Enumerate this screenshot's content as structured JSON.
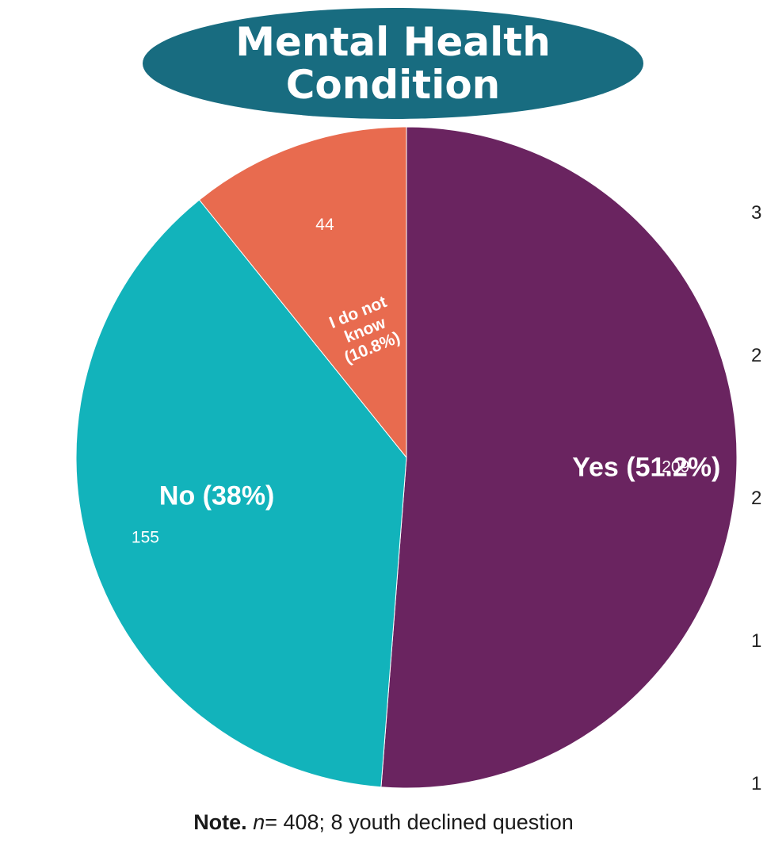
{
  "title": "Mental Health Condition",
  "note": {
    "bold": "Note.",
    "italic": "n",
    "rest": "= 408; 8 youth declined question"
  },
  "edge_ticks": [
    "3",
    "2",
    "2",
    "1",
    "1"
  ],
  "colors": {
    "yes": "#6a2460",
    "no": "#12b3bb",
    "unknown": "#e86b4f",
    "title_bg": "#186c80"
  },
  "chart_data": {
    "type": "pie",
    "title": "Mental Health Condition",
    "slices": [
      {
        "label": "Yes (51.2%)",
        "value": 209,
        "percent": 51.2,
        "color": "#6a2460"
      },
      {
        "label": "No (38%)",
        "value": 155,
        "percent": 38,
        "color": "#12b3bb"
      },
      {
        "label": "I do not know (10.8%)",
        "label_lines": [
          "I do not",
          "know",
          "(10.8%)"
        ],
        "value": 44,
        "percent": 10.8,
        "color": "#e86b4f"
      }
    ]
  }
}
